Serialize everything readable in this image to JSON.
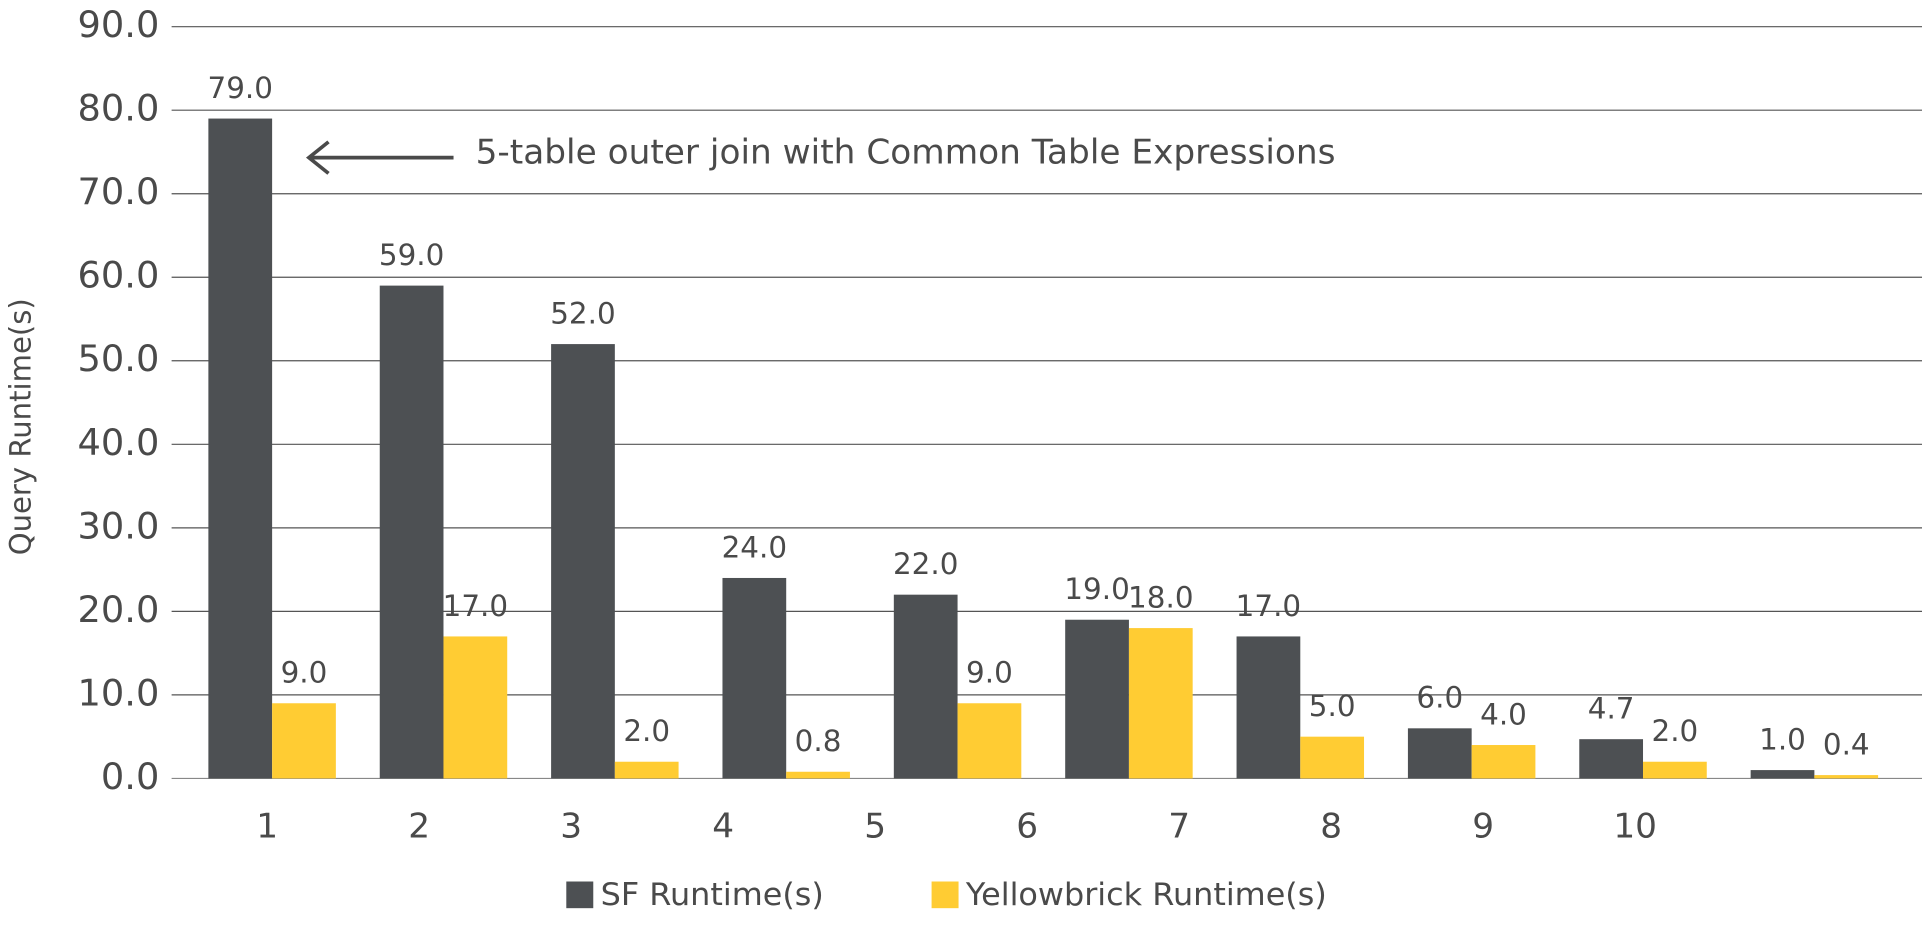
{
  "chart_data": {
    "type": "bar",
    "annotation": "5-table outer join with Common Table Expressions",
    "y_label": "Query Runtime(s)",
    "categories": [
      "1",
      "2",
      "3",
      "4",
      "5",
      "6",
      "7",
      "8",
      "9",
      "10"
    ],
    "series": [
      {
        "name": "SF Runtime(s)",
        "color": "#4d5053",
        "values": [
          79,
          59,
          52,
          24,
          22,
          19,
          17,
          6,
          4.7,
          1
        ],
        "value_labels": [
          "79.0",
          "59.0",
          "52.0",
          "24.0",
          "22.0",
          "19.0",
          "17.0",
          "6.0",
          "4.7",
          "1.0"
        ]
      },
      {
        "name": "Yellowbrick Runtime(s)",
        "color": "#ffcc33",
        "values": [
          9,
          17,
          2,
          0.8,
          9,
          18,
          5,
          4,
          2,
          0.4
        ],
        "value_labels": [
          "9.0",
          "17.0",
          "2.0",
          "0.8",
          "9.0",
          "18.0",
          "5.0",
          "4.0",
          "2.0",
          "0.4"
        ]
      }
    ],
    "ylim": [
      0,
      90
    ],
    "yticks": [
      {
        "value": 0,
        "label": "0.0"
      },
      {
        "value": 10,
        "label": "10.0"
      },
      {
        "value": 20,
        "label": "20.0"
      },
      {
        "value": 30,
        "label": "30.0"
      },
      {
        "value": 40,
        "label": "40.0"
      },
      {
        "value": 50,
        "label": "50.0"
      },
      {
        "value": 60,
        "label": "60.0"
      },
      {
        "value": 70,
        "label": "70.0"
      },
      {
        "value": 80,
        "label": "80.0"
      },
      {
        "value": 90,
        "label": "90.0"
      }
    ],
    "grid": true,
    "legend": "bottom"
  }
}
